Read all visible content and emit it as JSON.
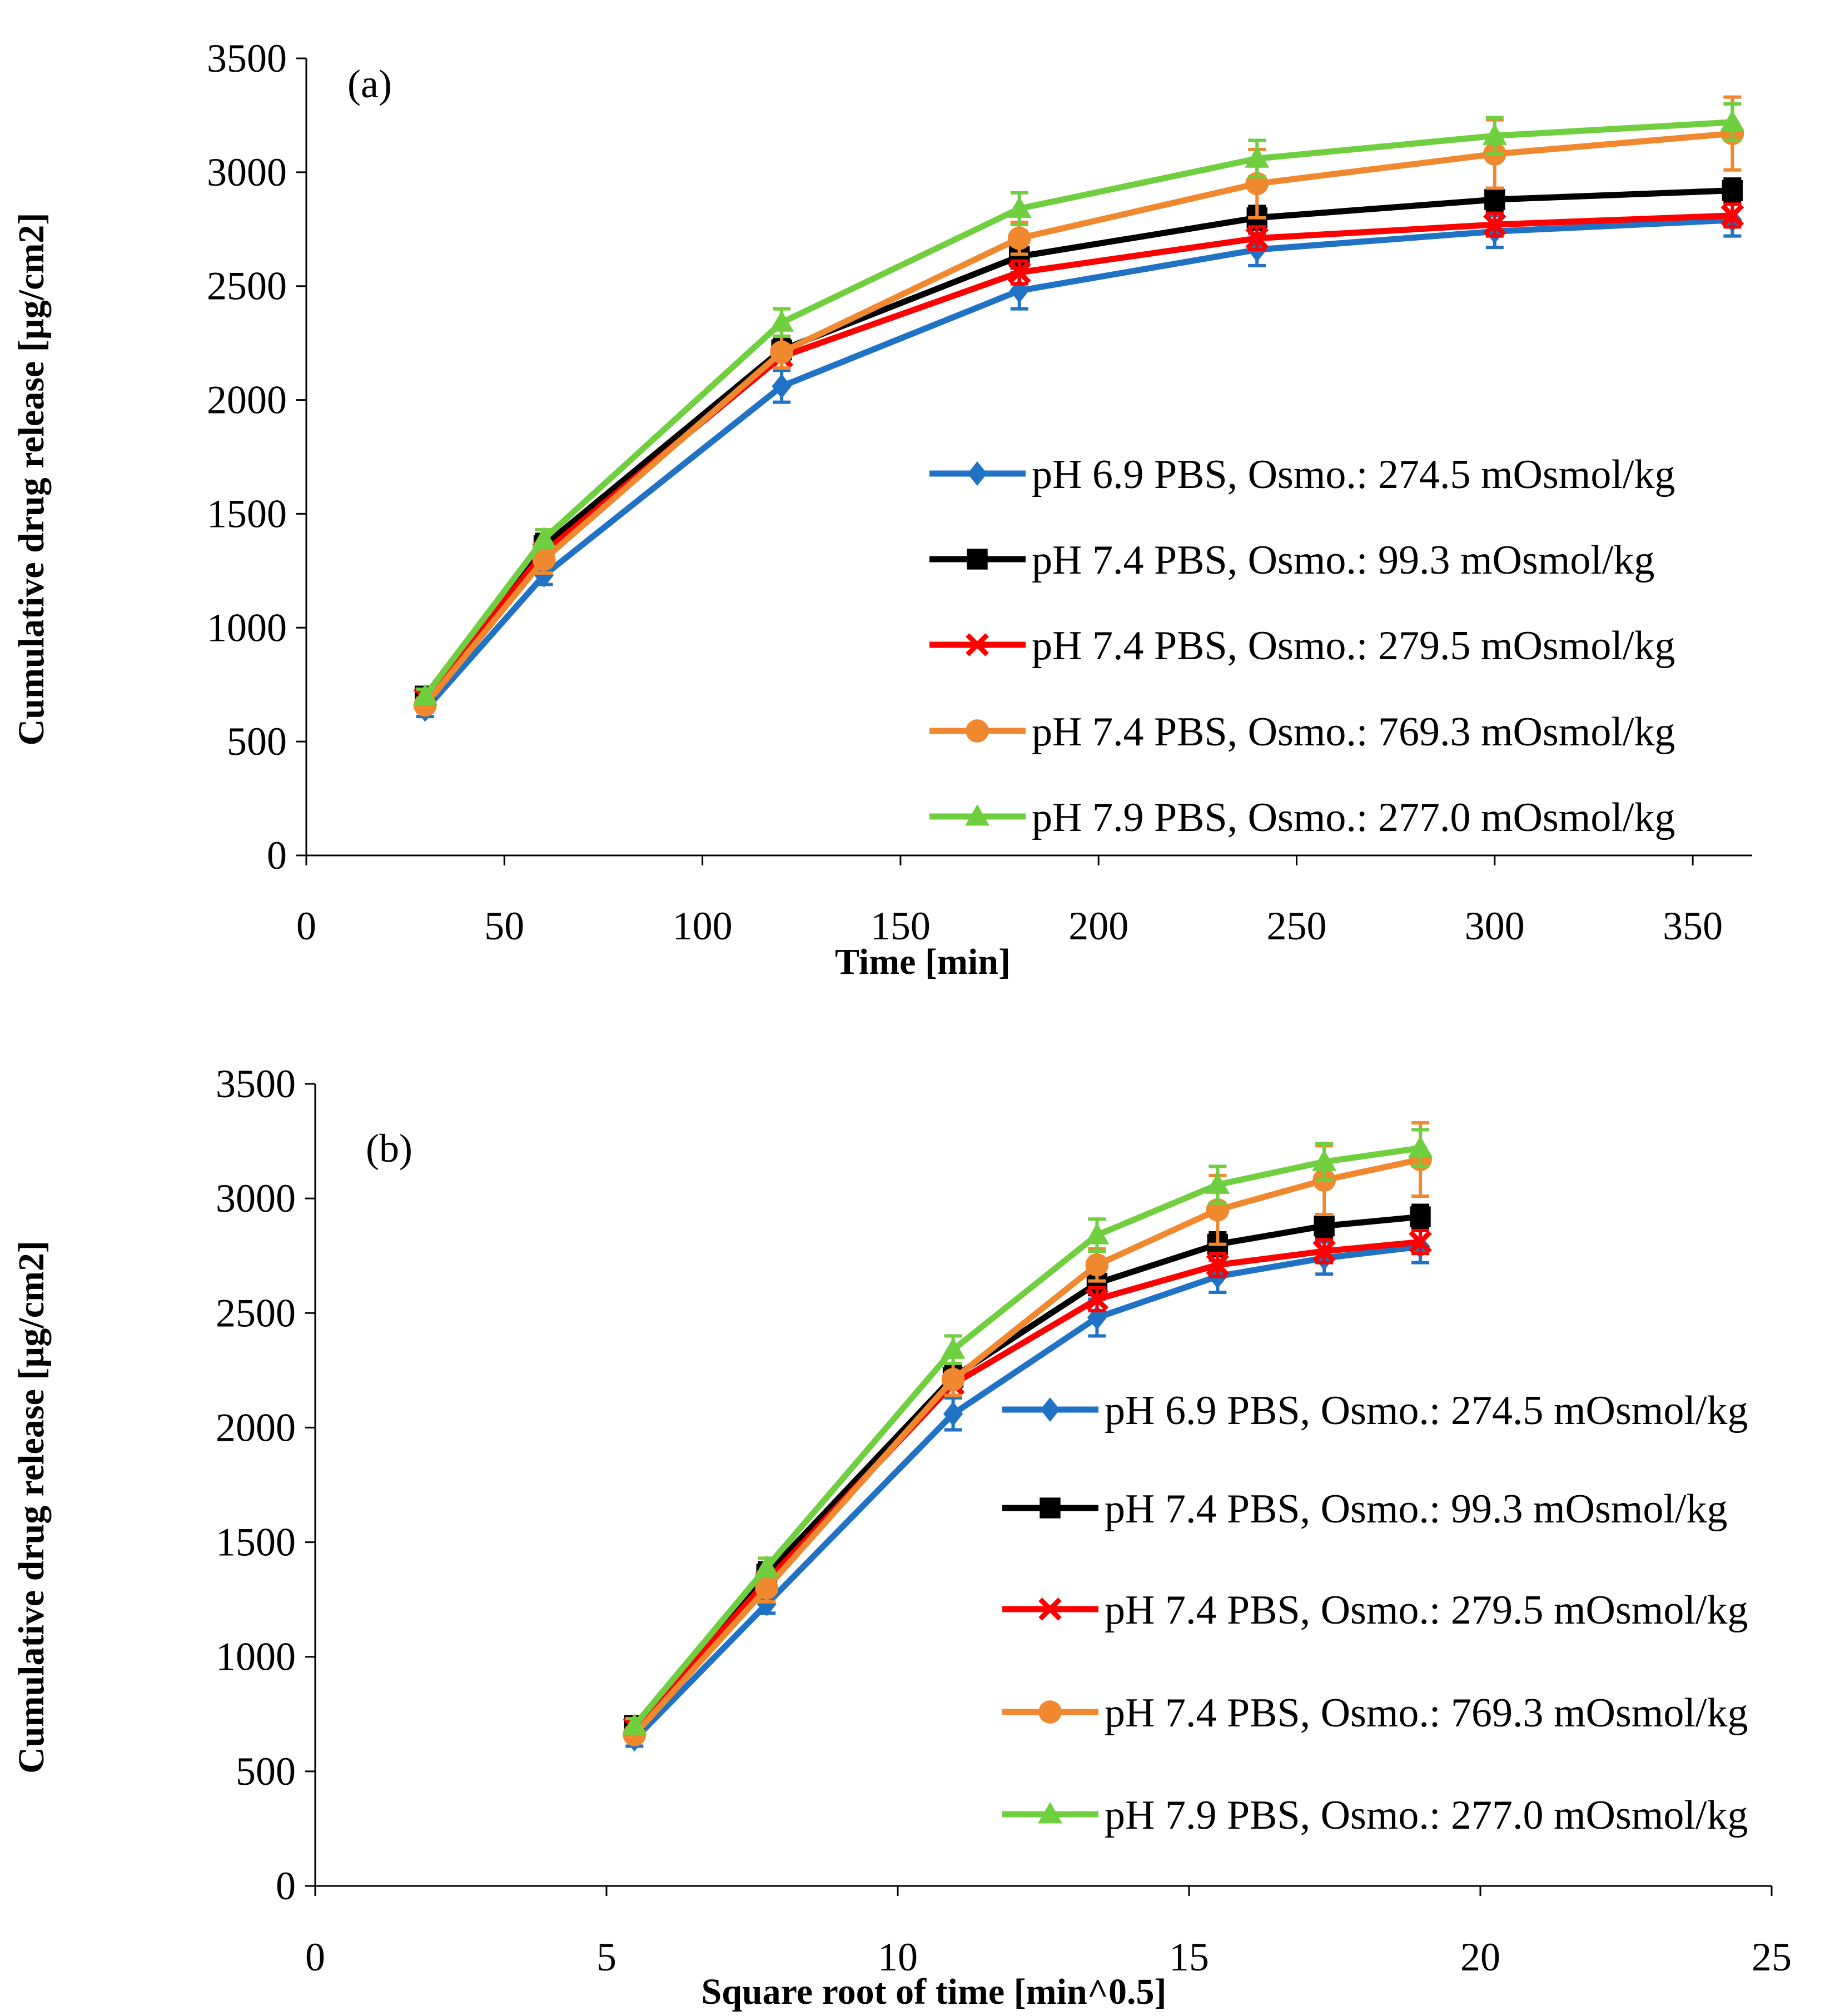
{
  "chart_data": [
    {
      "type": "line",
      "panel_label": "(a)",
      "xlabel": "Time [min]",
      "ylabel": "Cumulative drug release  [µg/cm2]",
      "xlim": [
        0,
        365
      ],
      "ylim": [
        0,
        3500
      ],
      "xticks": [
        0,
        50,
        100,
        150,
        200,
        250,
        300,
        350
      ],
      "yticks": [
        0,
        500,
        1000,
        1500,
        2000,
        2500,
        3000,
        3500
      ],
      "grid": false,
      "legend_position": "lower-right",
      "x": [
        30,
        60,
        120,
        180,
        240,
        300,
        360
      ],
      "series_ref": "series"
    },
    {
      "type": "line",
      "panel_label": "(b)",
      "xlabel": "Square root of time [min^0.5]",
      "ylabel": "Cumulative drug release  [µg/cm2]",
      "xlim": [
        0,
        25
      ],
      "ylim": [
        0,
        3500
      ],
      "xticks": [
        0,
        5,
        10,
        15,
        20,
        25
      ],
      "yticks": [
        0,
        500,
        1000,
        1500,
        2000,
        2500,
        3000,
        3500
      ],
      "grid": false,
      "legend_position": "lower-right",
      "x": [
        5.48,
        7.75,
        10.95,
        13.42,
        15.49,
        17.32,
        18.97
      ],
      "series_ref": "series"
    }
  ],
  "series": [
    {
      "name": "pH 6.9 PBS, Osmo.: 274.5 mOsmol/kg",
      "color": "#1f72c4",
      "marker": "diamond",
      "values": [
        640,
        1230,
        2060,
        2480,
        2660,
        2740,
        2790
      ],
      "errors": [
        30,
        40,
        70,
        80,
        70,
        70,
        70
      ]
    },
    {
      "name": "pH 7.4 PBS, Osmo.: 99.3 mOsmol/kg",
      "color": "#000000",
      "marker": "square",
      "values": [
        700,
        1360,
        2220,
        2630,
        2800,
        2880,
        2920
      ],
      "errors": [
        30,
        50,
        50,
        50,
        50,
        50,
        50
      ]
    },
    {
      "name": "pH 7.4 PBS, Osmo.: 279.5 mOsmol/kg",
      "color": "#ff0000",
      "marker": "x",
      "values": [
        690,
        1330,
        2190,
        2560,
        2710,
        2770,
        2810
      ],
      "errors": [
        30,
        40,
        50,
        50,
        50,
        50,
        50
      ]
    },
    {
      "name": "pH 7.4 PBS, Osmo.: 769.3 mOsmol/kg",
      "color": "#f0882f",
      "marker": "circle",
      "values": [
        660,
        1300,
        2210,
        2710,
        2950,
        3080,
        3170
      ],
      "errors": [
        30,
        60,
        70,
        70,
        150,
        150,
        160
      ]
    },
    {
      "name": "pH 7.9 PBS, Osmo.: 277.0 mOsmol/kg",
      "color": "#6fcf3f",
      "marker": "triangle",
      "values": [
        700,
        1390,
        2340,
        2840,
        3060,
        3160,
        3220
      ],
      "errors": [
        30,
        40,
        60,
        70,
        80,
        80,
        80
      ]
    }
  ]
}
